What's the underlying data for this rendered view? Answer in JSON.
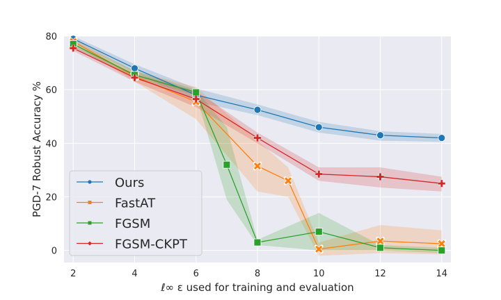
{
  "chart_data": {
    "type": "line",
    "xlabel": "ℓ∞ ε used for training and evaluation",
    "ylabel": "PGD-7 Robust Accuracy %",
    "xlim": [
      1.7,
      14.3
    ],
    "ylim": [
      -4.5,
      80
    ],
    "xticks": [
      2,
      4,
      6,
      8,
      10,
      12,
      14
    ],
    "yticks": [
      0,
      20,
      40,
      60,
      80
    ],
    "grid": true,
    "legend_position": "lower-left",
    "series": [
      {
        "name": "Ours",
        "color": "#1f77b4",
        "marker": "circle",
        "x": [
          2,
          4,
          6,
          8,
          10,
          12,
          14
        ],
        "y": [
          79,
          68,
          58,
          52.5,
          46,
          43,
          42
        ],
        "ci_low": [
          78,
          66.5,
          55.5,
          50.5,
          44,
          41,
          40.5
        ],
        "ci_high": [
          80,
          69.5,
          60.5,
          54.5,
          48,
          44.5,
          43.5
        ]
      },
      {
        "name": "FastAT",
        "color": "#ff7f0e",
        "marker": "x",
        "x": [
          2,
          4,
          6,
          8,
          9,
          10,
          12,
          14
        ],
        "y": [
          78,
          65,
          55.5,
          31.5,
          26,
          0.5,
          3.5,
          2.5
        ],
        "ci_low": [
          77,
          63,
          49,
          22,
          20,
          -2,
          -1,
          -1.5
        ],
        "ci_high": [
          79,
          67,
          61,
          41,
          31,
          3,
          9.5,
          7.5
        ]
      },
      {
        "name": "FGSM",
        "color": "#2ca02c",
        "marker": "square",
        "x": [
          2,
          4,
          6,
          7,
          8,
          10,
          12,
          14
        ],
        "y": [
          77,
          65.5,
          59,
          32,
          3,
          7,
          1,
          0
        ],
        "ci_low": [
          76,
          64,
          58,
          19,
          2,
          0,
          0,
          -1
        ],
        "ci_high": [
          78,
          67,
          60,
          46,
          4,
          14,
          2,
          1
        ]
      },
      {
        "name": "FGSM-CKPT",
        "color": "#d62728",
        "marker": "plus",
        "x": [
          2,
          4,
          6,
          8,
          10,
          12,
          14
        ],
        "y": [
          75.5,
          64.5,
          56.5,
          42,
          28.5,
          27.5,
          25
        ],
        "ci_low": [
          74.5,
          63,
          53.5,
          40,
          26,
          23.5,
          22
        ],
        "ci_high": [
          76.5,
          66,
          59.5,
          44,
          31,
          31,
          27.5
        ]
      }
    ]
  }
}
